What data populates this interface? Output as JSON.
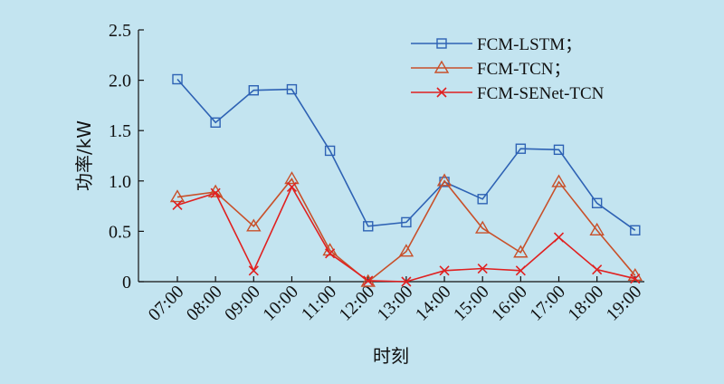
{
  "chart_data": {
    "type": "line",
    "categories": [
      "07:00",
      "08:00",
      "09:00",
      "10:00",
      "11:00",
      "12:00",
      "13:00",
      "14:00",
      "15:00",
      "16:00",
      "17:00",
      "18:00",
      "19:00"
    ],
    "xlabel": "时刻",
    "ylabel": "功率/kW",
    "ylim": [
      0,
      2.5
    ],
    "yticks": [
      "0",
      "0.5",
      "1.0",
      "1.5",
      "2.0",
      "2.5"
    ],
    "grid": false,
    "legend_position": "top-right",
    "series": [
      {
        "name": "FCM-LSTM；",
        "marker": "square",
        "color": "#2e62b4",
        "values": [
          2.01,
          1.58,
          1.9,
          1.91,
          1.3,
          0.55,
          0.59,
          0.99,
          0.82,
          1.32,
          1.31,
          0.78,
          0.51
        ]
      },
      {
        "name": "FCM-TCN；",
        "marker": "triangle",
        "color": "#c8502a",
        "values": [
          0.84,
          0.89,
          0.55,
          1.02,
          0.31,
          0.0,
          0.3,
          1.0,
          0.53,
          0.29,
          0.99,
          0.51,
          0.06
        ]
      },
      {
        "name": "FCM-SENet-TCN",
        "marker": "x",
        "color": "#e02020",
        "values": [
          0.76,
          0.88,
          0.11,
          0.94,
          0.28,
          0.01,
          0.0,
          0.11,
          0.13,
          0.11,
          0.44,
          0.12,
          0.03
        ]
      }
    ]
  }
}
